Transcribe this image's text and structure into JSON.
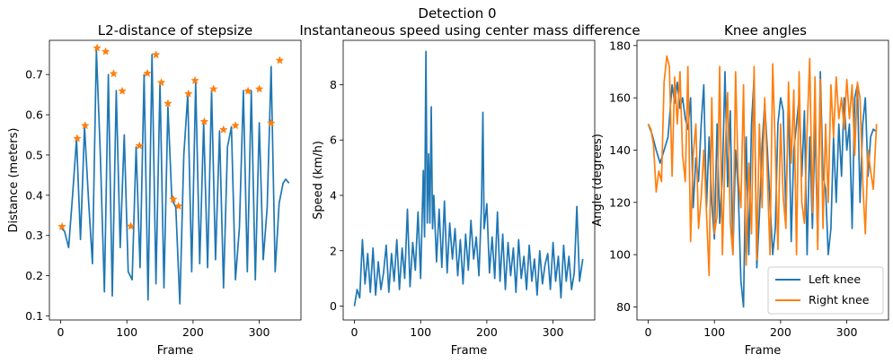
{
  "figure": {
    "suptitle": "Detection 0"
  },
  "chart_data": [
    {
      "type": "line",
      "title": "L2-distance of stepsize",
      "xlabel": "Frame",
      "ylabel": "Distance (meters)",
      "xlim": [
        -17,
        363
      ],
      "ylim": [
        0.09,
        0.785
      ],
      "xticks": [
        0,
        100,
        200,
        300
      ],
      "yticks": [
        0.1,
        0.2,
        0.3,
        0.4,
        0.5,
        0.6,
        0.7
      ],
      "ytick_labels": [
        "0.1",
        "0.2",
        "0.3",
        "0.4",
        "0.5",
        "0.6",
        "0.7"
      ],
      "series": [
        {
          "color": "#1f77b4",
          "x": [
            0,
            6,
            12,
            18,
            24,
            30,
            36,
            42,
            48,
            54,
            60,
            66,
            72,
            78,
            84,
            90,
            96,
            102,
            108,
            114,
            120,
            126,
            132,
            138,
            144,
            150,
            156,
            162,
            168,
            174,
            180,
            186,
            192,
            198,
            204,
            210,
            216,
            222,
            228,
            234,
            240,
            246,
            252,
            258,
            264,
            270,
            276,
            282,
            288,
            294,
            300,
            306,
            312,
            318,
            324,
            330,
            336,
            340,
            345
          ],
          "y": [
            0.32,
            0.31,
            0.27,
            0.4,
            0.54,
            0.29,
            0.57,
            0.39,
            0.23,
            0.76,
            0.5,
            0.16,
            0.7,
            0.15,
            0.66,
            0.27,
            0.55,
            0.21,
            0.19,
            0.52,
            0.22,
            0.7,
            0.14,
            0.75,
            0.18,
            0.68,
            0.17,
            0.62,
            0.39,
            0.37,
            0.13,
            0.5,
            0.65,
            0.21,
            0.68,
            0.23,
            0.58,
            0.22,
            0.66,
            0.24,
            0.56,
            0.17,
            0.52,
            0.57,
            0.19,
            0.32,
            0.66,
            0.21,
            0.66,
            0.19,
            0.58,
            0.24,
            0.37,
            0.72,
            0.21,
            0.38,
            0.43,
            0.44,
            0.43
          ]
        }
      ],
      "markers": {
        "color": "#ff7f0e",
        "x": [
          2,
          25,
          37,
          55,
          68,
          80,
          93,
          106,
          119,
          131,
          144,
          152,
          162,
          170,
          178,
          193,
          203,
          217,
          231,
          246,
          264,
          283,
          300,
          318,
          331
        ],
        "y": [
          0.322,
          0.541,
          0.573,
          0.766,
          0.757,
          0.702,
          0.659,
          0.323,
          0.523,
          0.703,
          0.749,
          0.68,
          0.628,
          0.39,
          0.373,
          0.652,
          0.685,
          0.583,
          0.664,
          0.563,
          0.573,
          0.659,
          0.664,
          0.579,
          0.735
        ]
      }
    },
    {
      "type": "line",
      "title": "Instantaneous speed using center mass difference",
      "xlabel": "Frame",
      "ylabel": "Speed (km/h)",
      "xlim": [
        -17,
        363
      ],
      "ylim": [
        -0.5,
        9.6
      ],
      "xticks": [
        0,
        100,
        200,
        300
      ],
      "yticks": [
        0,
        2,
        4,
        6,
        8
      ],
      "ytick_labels": [
        "0",
        "2",
        "4",
        "6",
        "8"
      ],
      "series": [
        {
          "color": "#1f77b4",
          "x": [
            0,
            4,
            8,
            12,
            16,
            20,
            24,
            28,
            32,
            36,
            40,
            44,
            48,
            52,
            56,
            60,
            64,
            68,
            72,
            76,
            80,
            84,
            88,
            92,
            96,
            100,
            104,
            106,
            108,
            110,
            112,
            114,
            116,
            118,
            120,
            124,
            128,
            132,
            136,
            140,
            144,
            148,
            152,
            156,
            160,
            164,
            168,
            172,
            176,
            180,
            184,
            188,
            192,
            194,
            196,
            200,
            204,
            208,
            212,
            216,
            220,
            224,
            228,
            232,
            236,
            240,
            244,
            248,
            252,
            256,
            260,
            264,
            268,
            272,
            276,
            280,
            284,
            288,
            292,
            296,
            300,
            304,
            308,
            312,
            316,
            320,
            324,
            328,
            332,
            336,
            340,
            345
          ],
          "y": [
            0,
            0.6,
            0.3,
            2.4,
            0.8,
            1.9,
            0.5,
            2.1,
            0.4,
            1.6,
            0.6,
            1.2,
            2.2,
            0.5,
            1.9,
            0.9,
            2.4,
            0.6,
            2.1,
            1.0,
            3.5,
            0.7,
            2.3,
            1.3,
            3.4,
            1.0,
            4.9,
            2.5,
            9.2,
            3.0,
            5.5,
            3.0,
            7.2,
            2.8,
            4.0,
            1.6,
            3.5,
            1.4,
            3.8,
            1.2,
            3.0,
            1.7,
            2.8,
            1.1,
            2.4,
            0.8,
            2.6,
            1.3,
            3.1,
            1.7,
            2.5,
            1.1,
            3.7,
            7.0,
            2.8,
            3.7,
            1.2,
            2.5,
            1.0,
            3.4,
            0.9,
            2.6,
            0.6,
            2.3,
            1.1,
            2.1,
            0.5,
            2.4,
            1.0,
            1.8,
            0.6,
            2.2,
            0.9,
            1.7,
            0.4,
            2.0,
            0.8,
            1.5,
            1.9,
            0.6,
            2.3,
            0.9,
            1.8,
            0.3,
            2.2,
            0.9,
            1.8,
            0.6,
            1.2,
            3.6,
            0.9,
            1.7
          ]
        }
      ]
    },
    {
      "type": "line",
      "title": "Knee angles",
      "xlabel": "Frame",
      "ylabel": "Angle (degrees)",
      "xlim": [
        -17,
        363
      ],
      "ylim": [
        75,
        182
      ],
      "xticks": [
        0,
        100,
        200,
        300
      ],
      "yticks": [
        80,
        100,
        120,
        140,
        160,
        180
      ],
      "ytick_labels": [
        "80",
        "100",
        "120",
        "140",
        "160",
        "180"
      ],
      "legend": {
        "position": "lower right",
        "entries": [
          "Left knee",
          "Right knee"
        ]
      },
      "series": [
        {
          "name": "Left knee",
          "color": "#1f77b4",
          "x": [
            0,
            6,
            12,
            18,
            24,
            30,
            36,
            40,
            44,
            48,
            52,
            56,
            60,
            64,
            68,
            72,
            76,
            80,
            84,
            88,
            92,
            96,
            100,
            104,
            108,
            112,
            116,
            120,
            124,
            128,
            132,
            136,
            140,
            144,
            148,
            152,
            156,
            160,
            164,
            168,
            172,
            176,
            180,
            184,
            188,
            192,
            196,
            200,
            204,
            208,
            212,
            216,
            220,
            224,
            228,
            232,
            236,
            240,
            244,
            248,
            252,
            256,
            260,
            264,
            268,
            272,
            276,
            280,
            284,
            288,
            292,
            296,
            300,
            304,
            308,
            312,
            316,
            320,
            324,
            328,
            332,
            336,
            340,
            345
          ],
          "y": [
            150,
            146,
            140,
            135,
            140,
            145,
            165,
            158,
            166,
            156,
            160,
            152,
            148,
            160,
            118,
            137,
            128,
            150,
            165,
            118,
            145,
            120,
            106,
            150,
            112,
            130,
            170,
            126,
            155,
            100,
            140,
            125,
            90,
            80,
            145,
            100,
            150,
            168,
            95,
            115,
            142,
            158,
            140,
            120,
            100,
            110,
            150,
            160,
            155,
            115,
            160,
            105,
            140,
            150,
            160,
            130,
            155,
            100,
            145,
            110,
            150,
            105,
            170,
            130,
            125,
            100,
            110,
            145,
            120,
            150,
            130,
            160,
            140,
            150,
            110,
            160,
            165,
            120,
            150,
            160,
            130,
            145,
            148,
            147
          ]
        },
        {
          "name": "Right knee",
          "color": "#ff7f0e",
          "x": [
            0,
            4,
            8,
            12,
            16,
            20,
            24,
            28,
            32,
            36,
            40,
            44,
            48,
            52,
            56,
            60,
            64,
            68,
            72,
            76,
            80,
            84,
            88,
            92,
            96,
            100,
            104,
            108,
            112,
            116,
            120,
            124,
            128,
            132,
            136,
            140,
            144,
            148,
            152,
            156,
            160,
            164,
            168,
            172,
            176,
            180,
            184,
            188,
            192,
            196,
            200,
            204,
            208,
            212,
            216,
            220,
            224,
            228,
            232,
            236,
            240,
            244,
            248,
            252,
            256,
            260,
            264,
            268,
            272,
            276,
            280,
            284,
            288,
            292,
            296,
            300,
            304,
            308,
            312,
            316,
            320,
            324,
            328,
            332,
            336,
            340,
            345
          ],
          "y": [
            150,
            148,
            142,
            124,
            132,
            128,
            166,
            176,
            172,
            130,
            168,
            150,
            170,
            138,
            128,
            172,
            105,
            138,
            150,
            110,
            122,
            140,
            116,
            92,
            160,
            108,
            115,
            172,
            100,
            138,
            162,
            112,
            100,
            170,
            130,
            118,
            165,
            96,
            135,
            108,
            172,
            98,
            150,
            118,
            160,
            130,
            100,
            173,
            140,
            102,
            150,
            122,
            110,
            166,
            135,
            163,
            100,
            170,
            120,
            112,
            148,
            175,
            116,
            168,
            102,
            167,
            110,
            150,
            120,
            165,
            145,
            168,
            152,
            160,
            148,
            167,
            152,
            165,
            138,
            166,
            160,
            128,
            108,
            140,
            132,
            125,
            150
          ]
        }
      ]
    }
  ]
}
